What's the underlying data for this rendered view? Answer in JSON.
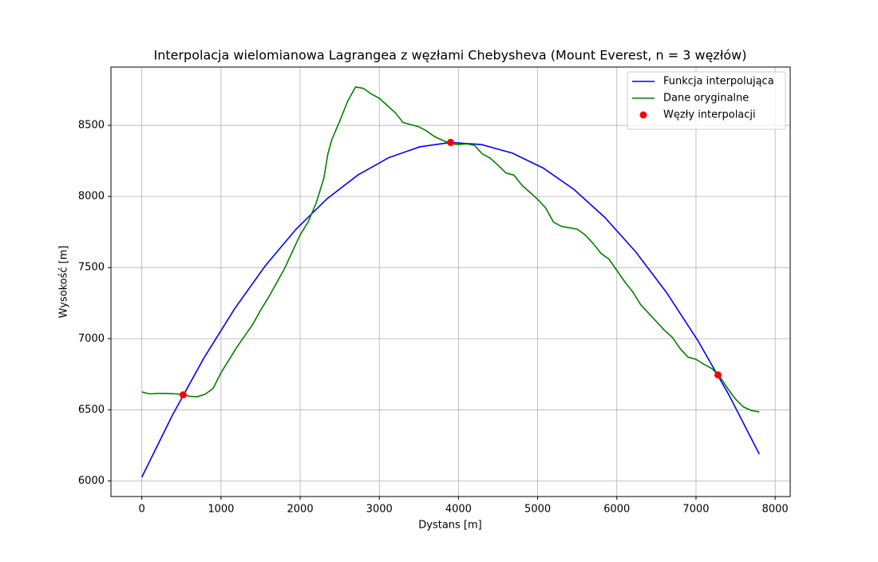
{
  "chart_data": {
    "type": "line",
    "title": "Interpolacja wielomianowa Lagrangea z węzłami Chebysheva (Mount Everest, n = 3 węzłów)",
    "x_label": "Dystans [m]",
    "y_label": "Wysokość [m]",
    "xlim": [
      -390,
      8190
    ],
    "ylim": [
      5890,
      8910
    ],
    "xticks": [
      0,
      1000,
      2000,
      3000,
      4000,
      5000,
      6000,
      7000,
      8000
    ],
    "yticks": [
      6000,
      6500,
      7000,
      7500,
      8000,
      8500
    ],
    "grid": true,
    "legend": "upper right",
    "series": [
      {
        "name": "Funkcja interpolująca",
        "color": "#0000ff",
        "mode": "line",
        "x": [
          0,
          390,
          780,
          1170,
          1560,
          1950,
          2340,
          2730,
          3120,
          3510,
          3900,
          4290,
          4680,
          5070,
          5460,
          5850,
          6240,
          6630,
          7020,
          7410,
          7800
        ],
        "values": [
          6026,
          6466,
          6860,
          7209,
          7513,
          7771,
          7984,
          8151,
          8273,
          8349,
          8380,
          8365,
          8305,
          8200,
          8049,
          7852,
          7610,
          7323,
          6990,
          6611,
          6188
        ]
      },
      {
        "name": "Dane oryginalne",
        "color": "#008000",
        "mode": "line",
        "x": [
          0,
          100,
          200,
          300,
          400,
          500,
          600,
          700,
          800,
          900,
          1000,
          1100,
          1200,
          1300,
          1400,
          1500,
          1600,
          1700,
          1800,
          1900,
          2000,
          2100,
          2200,
          2300,
          2350,
          2400,
          2500,
          2600,
          2700,
          2800,
          2900,
          3000,
          3100,
          3200,
          3300,
          3400,
          3500,
          3600,
          3700,
          3800,
          3900,
          4000,
          4100,
          4200,
          4300,
          4400,
          4500,
          4600,
          4700,
          4800,
          4900,
          5000,
          5100,
          5200,
          5300,
          5400,
          5500,
          5600,
          5700,
          5800,
          5900,
          6000,
          6100,
          6200,
          6300,
          6400,
          6500,
          6600,
          6700,
          6800,
          6900,
          7000,
          7100,
          7200,
          7300,
          7400,
          7500,
          7600,
          7700,
          7800
        ],
        "values": [
          6625,
          6612,
          6615,
          6615,
          6613,
          6610,
          6595,
          6592,
          6610,
          6650,
          6760,
          6850,
          6940,
          7020,
          7100,
          7200,
          7290,
          7390,
          7490,
          7610,
          7730,
          7820,
          7950,
          8130,
          8300,
          8400,
          8530,
          8670,
          8770,
          8760,
          8720,
          8690,
          8640,
          8590,
          8520,
          8505,
          8490,
          8460,
          8420,
          8395,
          8370,
          8365,
          8370,
          8360,
          8300,
          8270,
          8220,
          8165,
          8150,
          8080,
          8030,
          7980,
          7920,
          7820,
          7790,
          7780,
          7770,
          7730,
          7670,
          7600,
          7560,
          7480,
          7400,
          7330,
          7240,
          7180,
          7120,
          7060,
          7010,
          6930,
          6870,
          6855,
          6820,
          6790,
          6735,
          6650,
          6575,
          6520,
          6495,
          6485
        ]
      },
      {
        "name": "Węzły interpolacji",
        "color": "#ff0000",
        "mode": "markers",
        "x": [
          522,
          3900,
          7278
        ],
        "values": [
          6605,
          8380,
          6745
        ]
      }
    ]
  }
}
